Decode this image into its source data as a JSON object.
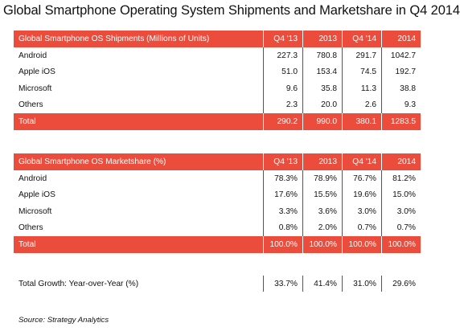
{
  "title": "Global Smartphone Operating System Shipments and Marketshare in Q4 2014",
  "colors": {
    "header_bg": "#ec4c3c",
    "header_text": "#ffffff"
  },
  "source": "Source: Strategy Analytics",
  "chart_data": [
    {
      "type": "table",
      "title": "Global Smartphone OS Shipments (Millions of Units)",
      "columns": [
        "Q4 '13",
        "2013",
        "Q4 '14",
        "2014"
      ],
      "rows": [
        {
          "label": "Android",
          "values": [
            "227.3",
            "780.8",
            "291.7",
            "1042.7"
          ]
        },
        {
          "label": "Apple iOS",
          "values": [
            "51.0",
            "153.4",
            "74.5",
            "192.7"
          ]
        },
        {
          "label": "Microsoft",
          "values": [
            "9.6",
            "35.8",
            "11.3",
            "38.8"
          ]
        },
        {
          "label": "Others",
          "values": [
            "2.3",
            "20.0",
            "2.6",
            "9.3"
          ]
        }
      ],
      "total": {
        "label": "Total",
        "values": [
          "290.2",
          "990.0",
          "380.1",
          "1283.5"
        ]
      }
    },
    {
      "type": "table",
      "title": "Global Smartphone OS Marketshare (%)",
      "columns": [
        "Q4 '13",
        "2013",
        "Q4 '14",
        "2014"
      ],
      "rows": [
        {
          "label": "Android",
          "values": [
            "78.3%",
            "78.9%",
            "76.7%",
            "81.2%"
          ]
        },
        {
          "label": "Apple iOS",
          "values": [
            "17.6%",
            "15.5%",
            "19.6%",
            "15.0%"
          ]
        },
        {
          "label": "Microsoft",
          "values": [
            "3.3%",
            "3.6%",
            "3.0%",
            "3.0%"
          ]
        },
        {
          "label": "Others",
          "values": [
            "0.8%",
            "2.0%",
            "0.7%",
            "0.7%"
          ]
        }
      ],
      "total": {
        "label": "Total",
        "values": [
          "100.0%",
          "100.0%",
          "100.0%",
          "100.0%"
        ]
      }
    },
    {
      "type": "table",
      "rows": [
        {
          "label": "Total Growth: Year-over-Year (%)",
          "values": [
            "33.7%",
            "41.4%",
            "31.0%",
            "29.6%"
          ]
        }
      ]
    }
  ]
}
